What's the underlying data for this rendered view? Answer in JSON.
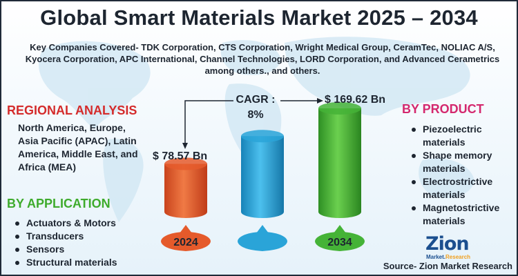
{
  "title": "Global Smart Materials Market 2025 – 2034",
  "key_companies": "Key Companies Covered- TDK Corporation, CTS Corporation, Wright Medical Group, CeramTec, NOLIAC A/S, Kyocera Corporation, APC International, Channel Technologies, LORD Corporation, and Advanced Cerametrics among others., and others.",
  "regional": {
    "heading": "REGIONAL ANALYSIS",
    "text": "North America, Europe, Asia Pacific (APAC), Latin America, Middle East, and Africa (MEA)"
  },
  "application": {
    "heading": "BY APPLICATION",
    "items": [
      "Actuators & Motors",
      "Transducers",
      "Sensors",
      "Structural materials"
    ]
  },
  "product": {
    "heading": "BY PRODUCT",
    "items": [
      "Piezoelectric materials",
      "Shape memory materials",
      "Electrostrictive materials",
      "Magnetostrictive materials"
    ]
  },
  "cagr": {
    "label": "CAGR :",
    "value": "8%"
  },
  "chart_data": {
    "type": "bar",
    "categories": [
      "2024",
      "",
      "2034"
    ],
    "values": [
      78.57,
      null,
      169.62
    ],
    "value_labels": [
      "$ 78.57 Bn",
      "",
      "$ 169.62 Bn"
    ],
    "unit": "Bn",
    "colors": [
      "#e55a2b",
      "#2aa4d8",
      "#45b337"
    ]
  },
  "logo": {
    "name": "Zion",
    "sub_left": "Market.",
    "sub_right": "Research"
  },
  "source": "Source- Zion Market Research",
  "colors": {
    "title_text": "#1d2530",
    "regional_heading": "#d42b2b",
    "section_heading": "#3eab2c",
    "logo_blue": "#1b4f8f",
    "logo_orange": "#f0a020"
  }
}
